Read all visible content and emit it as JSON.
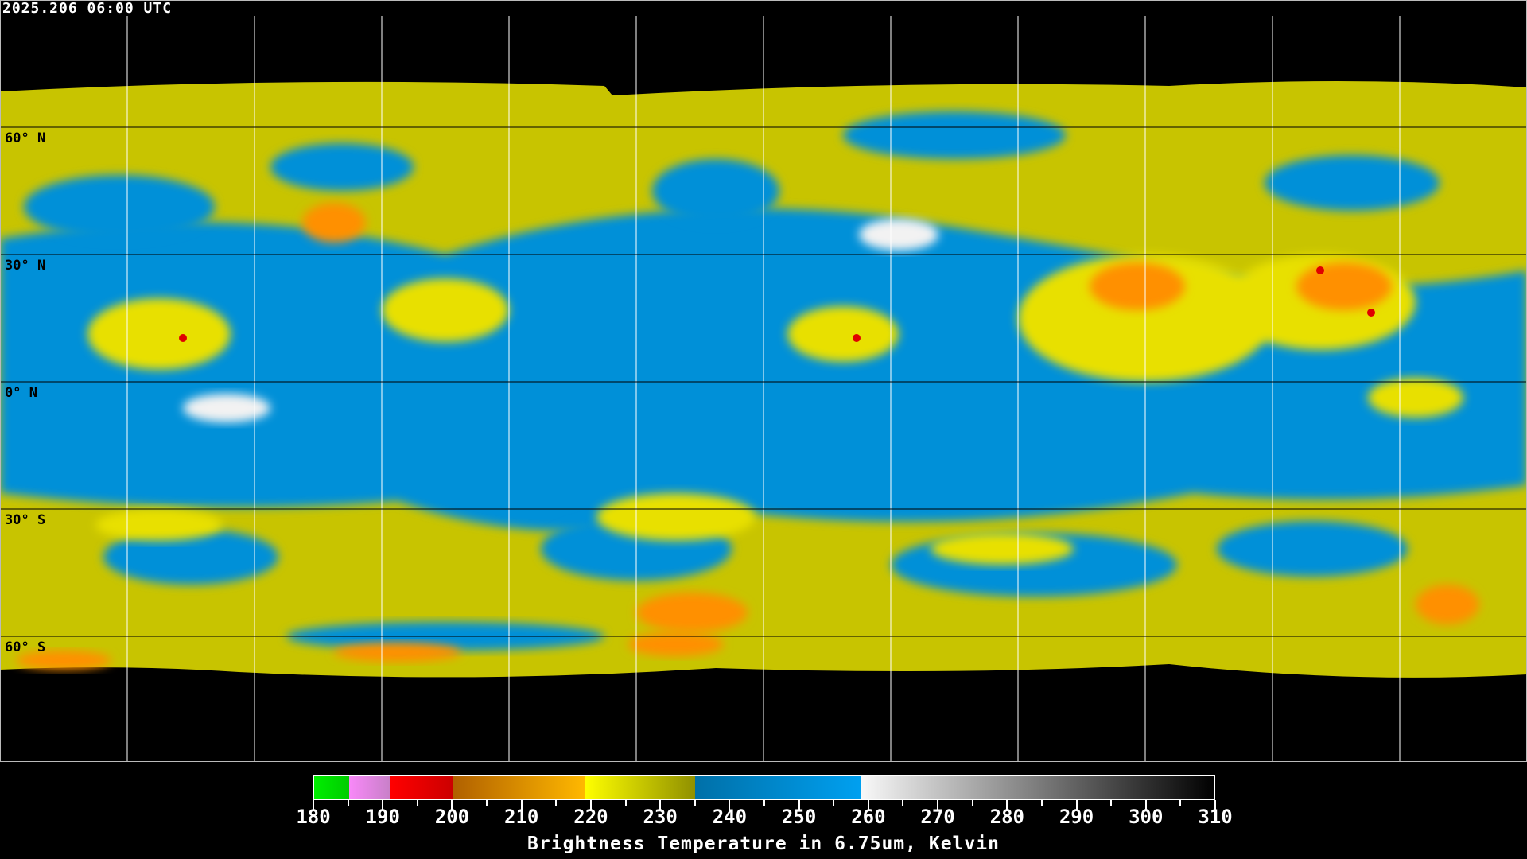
{
  "timestamp": "2025.206 06:00 UTC",
  "latitude_labels": [
    "60° N",
    "30° N",
    "0° N",
    "30° S",
    "60° S"
  ],
  "colorbar": {
    "title": "Brightness Temperature in 6.75um, Kelvin",
    "range": [
      180,
      310
    ],
    "tick_labels": [
      "180",
      "190",
      "200",
      "210",
      "220",
      "230",
      "240",
      "250",
      "260",
      "270",
      "280",
      "290",
      "300",
      "310"
    ],
    "segments": [
      {
        "from": 180,
        "to": 185,
        "colors": [
          "#00ee00",
          "#00cc00"
        ]
      },
      {
        "from": 185,
        "to": 191,
        "colors": [
          "#f888f8",
          "#c880c8"
        ]
      },
      {
        "from": 191,
        "to": 200,
        "colors": [
          "#ff0000",
          "#cc0000"
        ]
      },
      {
        "from": 200,
        "to": 219,
        "colors": [
          "#b06000",
          "#ffb800"
        ]
      },
      {
        "from": 219,
        "to": 235,
        "colors": [
          "#ffff00",
          "#909000"
        ]
      },
      {
        "from": 235,
        "to": 259,
        "colors": [
          "#0070a8",
          "#00a0f0"
        ]
      },
      {
        "from": 259,
        "to": 310,
        "colors": [
          "#f8f8f8",
          "#000000"
        ]
      }
    ]
  },
  "colors": {
    "cold_cloud": "#e8e000",
    "moist": "#c8c400",
    "dry": "#0090d8",
    "convection": "#ff9000",
    "core": "#e00000",
    "space": "#000000"
  }
}
